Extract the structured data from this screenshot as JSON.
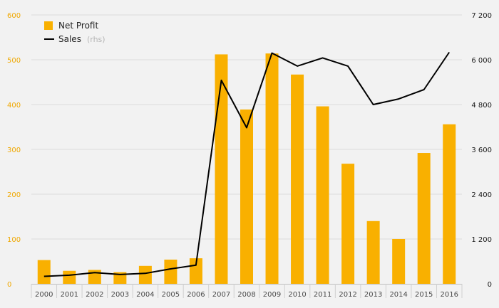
{
  "chart_data": {
    "type": "bar",
    "categories": [
      "2000",
      "2001",
      "2002",
      "2003",
      "2004",
      "2005",
      "2006",
      "2007",
      "2008",
      "2009",
      "2010",
      "2011",
      "2012",
      "2013",
      "2014",
      "2015",
      "2016"
    ],
    "series": [
      {
        "name": "Net Profit",
        "type": "bar",
        "axis": "left",
        "color": "#f9b000",
        "values": [
          53,
          29,
          31,
          26,
          40,
          54,
          57,
          512,
          389,
          514,
          467,
          396,
          268,
          140,
          100,
          292,
          356
        ]
      },
      {
        "name": "Sales",
        "name_suffix": "(rhs)",
        "type": "line",
        "axis": "right",
        "color": "#000000",
        "values": [
          200,
          230,
          300,
          250,
          280,
          400,
          500,
          5450,
          4180,
          6180,
          5830,
          6050,
          5830,
          4800,
          4950,
          5200,
          6200
        ]
      }
    ],
    "left_axis": {
      "ticks": [
        "0",
        "100",
        "200",
        "300",
        "400",
        "500",
        "600"
      ],
      "min": 0,
      "max": 600
    },
    "right_axis": {
      "ticks": [
        "0",
        "1 200",
        "2 400",
        "3 600",
        "4 800",
        "6 000",
        "7 200"
      ],
      "min": 0,
      "max": 7200
    },
    "legend": {
      "position": "top-left"
    },
    "grid": true
  }
}
